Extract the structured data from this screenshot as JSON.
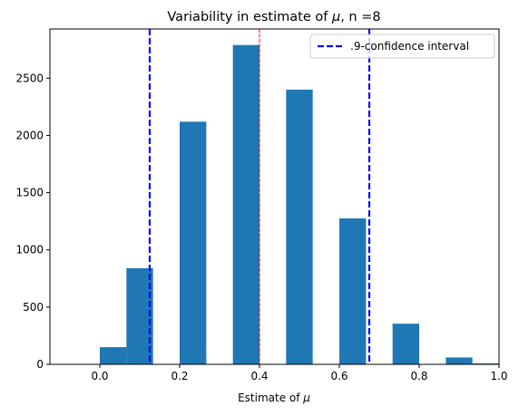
{
  "chart_data": {
    "type": "bar",
    "title": "Variability in estimate of μ, n =8",
    "title_parts": {
      "prefix": "Variability in estimate of ",
      "symbol": "μ",
      "suffix": ", n =8"
    },
    "xlabel": "Estimate of μ",
    "xlabel_parts": {
      "prefix": "Estimate of ",
      "symbol": "μ"
    },
    "ylabel": "",
    "xlim": [
      -0.125,
      1.0
    ],
    "ylim": [
      0,
      2930
    ],
    "xticks": [
      0.0,
      0.2,
      0.4,
      0.6,
      0.8,
      1.0
    ],
    "xtick_labels": [
      "0.0",
      "0.2",
      "0.4",
      "0.6",
      "0.8",
      "1.0"
    ],
    "yticks": [
      0,
      500,
      1000,
      1500,
      2000,
      2500
    ],
    "ytick_labels": [
      "0",
      "500",
      "1000",
      "1500",
      "2000",
      "2500"
    ],
    "bars": [
      {
        "x0": 0.0,
        "x1": 0.0667,
        "value": 150
      },
      {
        "x0": 0.0667,
        "x1": 0.1333,
        "value": 840
      },
      {
        "x0": 0.2,
        "x1": 0.2667,
        "value": 2120
      },
      {
        "x0": 0.3333,
        "x1": 0.4,
        "value": 2790
      },
      {
        "x0": 0.4667,
        "x1": 0.5333,
        "value": 2400
      },
      {
        "x0": 0.6,
        "x1": 0.6667,
        "value": 1275
      },
      {
        "x0": 0.7333,
        "x1": 0.8,
        "value": 355
      },
      {
        "x0": 0.8667,
        "x1": 0.9333,
        "value": 60
      },
      {
        "x0": 0.9333,
        "x1": 1.0,
        "value": 8
      }
    ],
    "bar_color": "#1f77b4",
    "vlines": [
      {
        "x": 0.125,
        "color": "#0000ff",
        "style": "dashed",
        "role": "ci-lower"
      },
      {
        "x": 0.675,
        "color": "#0000ff",
        "style": "dashed",
        "role": "ci-upper"
      },
      {
        "x": 0.4,
        "color": "#ff0000",
        "style": "dashed-thin",
        "role": "true-value"
      }
    ],
    "legend": {
      "location": "top-right",
      "entries": [
        {
          "label": ".9-confidence interval",
          "color": "#0000ff",
          "style": "dashed"
        }
      ]
    },
    "grid": false
  }
}
